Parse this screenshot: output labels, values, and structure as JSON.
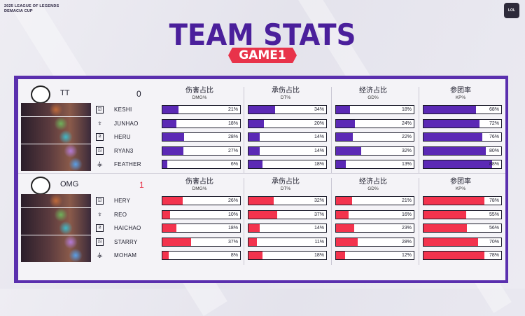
{
  "event": {
    "line1": "2025 LEAGUE OF LEGENDS",
    "line2": "DEMACIA CUP"
  },
  "title": "TEAM STATS",
  "game": "GAME1",
  "colors": {
    "tt_bar": "#5b29b5",
    "omg_bar": "#f3334d",
    "frame": "#5a2fae"
  },
  "headers": [
    {
      "cn": "伤害占比",
      "en": "DMG%"
    },
    {
      "cn": "承伤占比",
      "en": "DT%"
    },
    {
      "cn": "经济占比",
      "en": "GD%"
    },
    {
      "cn": "参团率",
      "en": "KP%"
    }
  ],
  "teams": [
    {
      "name": "TT",
      "score": "0",
      "color": "#5b29b5",
      "players": [
        {
          "role": "top-icon",
          "name": "KESHI",
          "dmg": 21,
          "dt": 34,
          "gd": 18,
          "kp": 68
        },
        {
          "role": "jungle-icon",
          "name": "JUNHAO",
          "dmg": 18,
          "dt": 20,
          "gd": 24,
          "kp": 72
        },
        {
          "role": "mid-icon",
          "name": "HERU",
          "dmg": 28,
          "dt": 14,
          "gd": 22,
          "kp": 76
        },
        {
          "role": "bot-icon",
          "name": "RYAN3",
          "dmg": 27,
          "dt": 14,
          "gd": 32,
          "kp": 80
        },
        {
          "role": "support-icon",
          "name": "FEATHER",
          "dmg": 6,
          "dt": 18,
          "gd": 13,
          "kp": 88
        }
      ]
    },
    {
      "name": "OMG",
      "score": "1",
      "color": "#f3334d",
      "players": [
        {
          "role": "top-icon",
          "name": "HERY",
          "dmg": 26,
          "dt": 32,
          "gd": 21,
          "kp": 78
        },
        {
          "role": "jungle-icon",
          "name": "REO",
          "dmg": 10,
          "dt": 37,
          "gd": 16,
          "kp": 55
        },
        {
          "role": "mid-icon",
          "name": "HAICHAO",
          "dmg": 18,
          "dt": 14,
          "gd": 23,
          "kp": 56
        },
        {
          "role": "bot-icon",
          "name": "STARRY",
          "dmg": 37,
          "dt": 11,
          "gd": 28,
          "kp": 70
        },
        {
          "role": "support-icon",
          "name": "MOHAM",
          "dmg": 8,
          "dt": 18,
          "gd": 12,
          "kp": 78
        }
      ]
    }
  ]
}
